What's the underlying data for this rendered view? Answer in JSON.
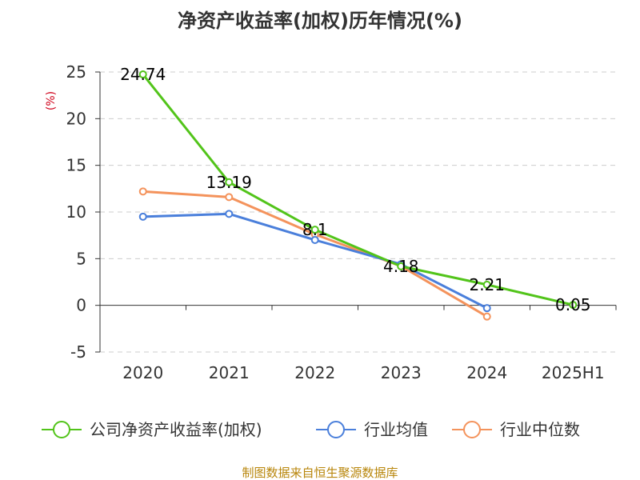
{
  "chart_data": {
    "type": "line",
    "title": "净资产收益率(加权)历年情况(%)",
    "ylabel": "(%)",
    "categories": [
      "2020",
      "2021",
      "2022",
      "2023",
      "2024",
      "2025H1"
    ],
    "ylim": [
      -5,
      25
    ],
    "yticks": [
      25,
      20,
      15,
      10,
      5,
      0,
      -5
    ],
    "grid": true,
    "legend_position": "bottom",
    "series": [
      {
        "name": "公司净资产收益率(加权)",
        "color": "#52c41a",
        "values": [
          24.74,
          13.19,
          8.1,
          4.18,
          2.21,
          0.05
        ],
        "labels": [
          "24.74",
          "13.19",
          "8.1",
          "4.18",
          "2.21",
          "0.05"
        ]
      },
      {
        "name": "行业均值",
        "color": "#4a7fdb",
        "values": [
          9.5,
          9.8,
          7.0,
          4.4,
          -0.3,
          null
        ]
      },
      {
        "name": "行业中位数",
        "color": "#f4935c",
        "values": [
          12.2,
          11.6,
          7.6,
          4.2,
          -1.2,
          null
        ]
      }
    ],
    "source": "制图数据来自恒生聚源数据库"
  }
}
